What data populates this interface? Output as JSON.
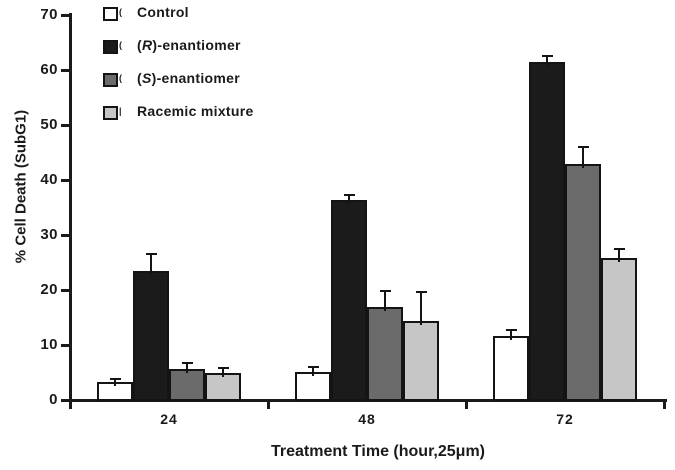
{
  "figure_title": "Bar chart of percent cell death (SubG1) versus treatment time",
  "chart_data": {
    "type": "bar",
    "title": "",
    "xlabel": "Treatment Time (hour,25μm)",
    "ylabel": "% Cell Death (SubG1)",
    "ylim": [
      0,
      70
    ],
    "yticks": [
      0,
      10,
      20,
      30,
      40,
      50,
      60,
      70
    ],
    "categories": [
      "24",
      "48",
      "72"
    ],
    "grid": false,
    "legend_position": "top-left",
    "axis_color": "#1a1a1a",
    "error_bars": "upper only",
    "series": [
      {
        "name": "Control",
        "color": "#ffffff",
        "label_prefix": "",
        "label_italic": "",
        "label_suffix": "Control",
        "artifact": "(",
        "values": [
          3.2,
          5.1,
          11.6
        ],
        "errors": [
          0.6,
          0.9,
          1.1
        ]
      },
      {
        "name": "(R)-enantiomer",
        "color": "#1b1b1b",
        "label_prefix": "(",
        "label_italic": "R",
        "label_suffix": ")-enantiomer",
        "artifact": "(",
        "values": [
          23.5,
          36.3,
          61.5
        ],
        "errors": [
          3.0,
          1.0,
          1.0
        ]
      },
      {
        "name": "(S)-enantiomer",
        "color": "#6b6b6b",
        "label_prefix": "(",
        "label_italic": "S",
        "label_suffix": ")-enantiomer",
        "artifact": "(",
        "values": [
          5.7,
          16.9,
          43.0
        ],
        "errors": [
          1.0,
          2.9,
          3.0
        ]
      },
      {
        "name": "Racemic mixture",
        "color": "#c6c6c6",
        "label_prefix": "",
        "label_italic": "",
        "label_suffix": "Racemic mixture",
        "artifact": "|",
        "values": [
          4.9,
          14.4,
          25.8
        ],
        "errors": [
          1.0,
          5.2,
          1.7
        ]
      }
    ]
  }
}
